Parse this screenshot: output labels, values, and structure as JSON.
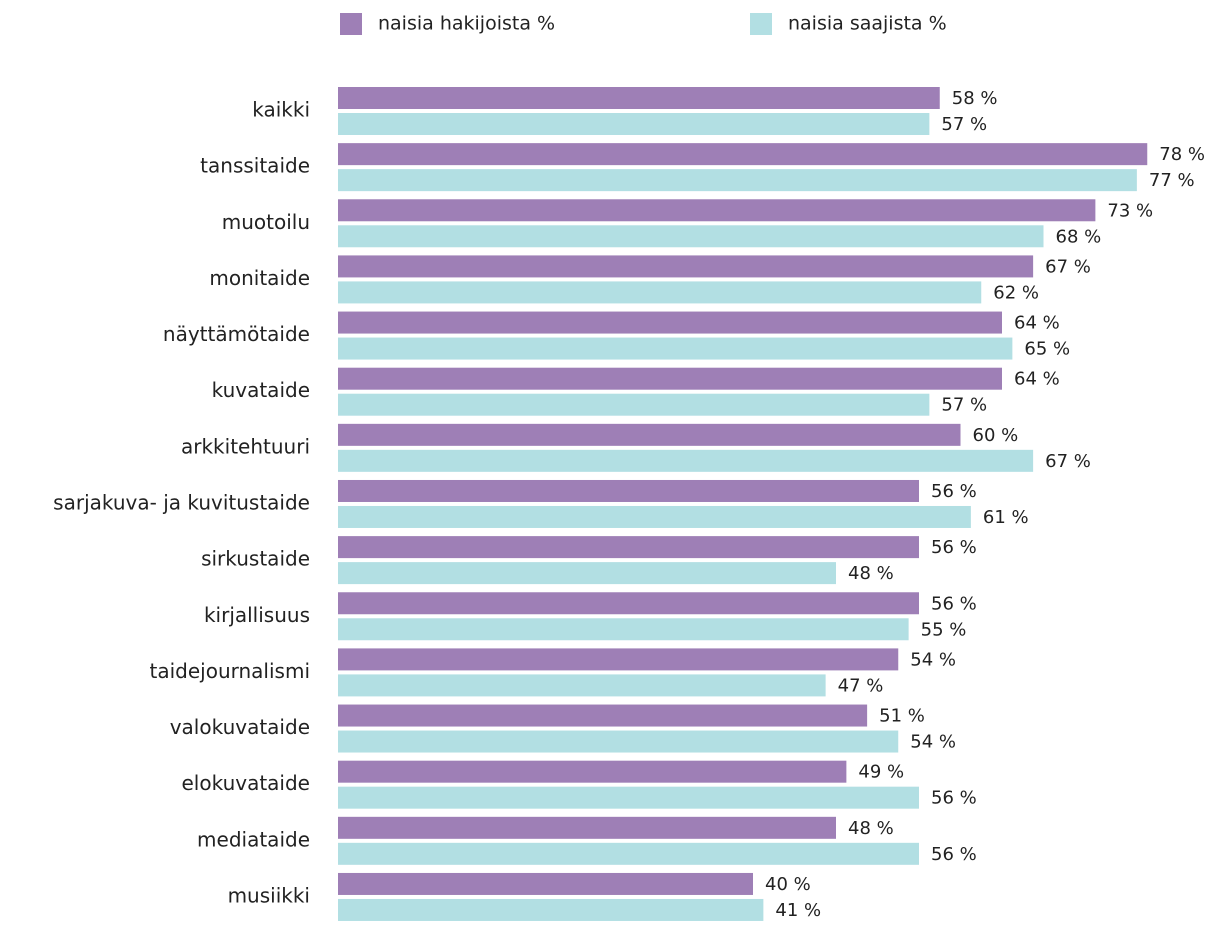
{
  "chart_data": {
    "type": "bar",
    "orientation": "horizontal",
    "categories": [
      "kaikki",
      "tanssitaide",
      "muotoilu",
      "monitaide",
      "näyttämötaide",
      "kuvataide",
      "arkkitehtuuri",
      "sarjakuva- ja kuvitustaide",
      "sirkustaide",
      "kirjallisuus",
      "taidejournalismi",
      "valokuvataide",
      "elokuvataide",
      "mediataide",
      "musiikki"
    ],
    "series": [
      {
        "name": "naisia hakijoista %",
        "color": "#9e7fb6",
        "values": [
          58,
          78,
          73,
          67,
          64,
          64,
          60,
          56,
          56,
          56,
          54,
          51,
          49,
          48,
          40
        ],
        "value_labels": [
          "58 %",
          "78 %",
          "73 %",
          "67 %",
          "64 %",
          "64 %",
          "60 %",
          "56 %",
          "56 %",
          "56 %",
          "54 %",
          "51 %",
          "49 %",
          "48 %",
          "40 %"
        ]
      },
      {
        "name": "naisia saajista %",
        "color": "#b2dfe3",
        "values": [
          57,
          77,
          68,
          62,
          65,
          57,
          67,
          61,
          48,
          55,
          47,
          54,
          56,
          56,
          41
        ],
        "value_labels": [
          "57 %",
          "77 %",
          "68 %",
          "62 %",
          "65 %",
          "57 %",
          "67 %",
          "61 %",
          "48 %",
          "55 %",
          "47 %",
          "54 %",
          "56 %",
          "56 %",
          "41 %"
        ]
      }
    ],
    "xlim": [
      0,
      80
    ],
    "legend": "top"
  }
}
